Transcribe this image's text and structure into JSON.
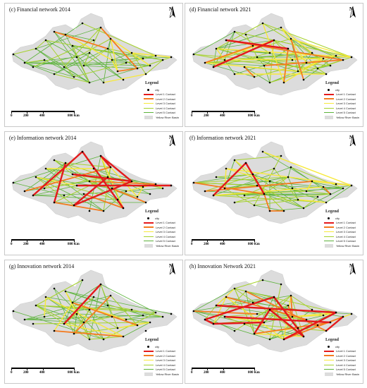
{
  "panels": [
    {
      "title": "(c) Financial network 2014",
      "seed": 11,
      "counts": [
        0,
        3,
        6,
        22,
        40
      ]
    },
    {
      "title": "(d) Financial network 2021",
      "seed": 23,
      "counts": [
        2,
        6,
        14,
        28,
        34
      ]
    },
    {
      "title": "(e) Information network 2014",
      "seed": 37,
      "counts": [
        9,
        5,
        8,
        16,
        26
      ]
    },
    {
      "title": "(f) Information network 2021",
      "seed": 41,
      "counts": [
        2,
        5,
        9,
        22,
        32
      ]
    },
    {
      "title": "(g) Innovation network 2014",
      "seed": 53,
      "counts": [
        1,
        3,
        7,
        20,
        36
      ]
    },
    {
      "title": "(h) Innovation Network 2021",
      "seed": 67,
      "counts": [
        10,
        8,
        12,
        20,
        30
      ]
    }
  ],
  "north": "N",
  "legend": {
    "title": "Legend",
    "city": "city",
    "levels": [
      "Level 1 Contact",
      "Level 2 Contact",
      "Level 3 Contact",
      "Level 4 Contact",
      "Level 5 Contact"
    ],
    "basin": "Yellow River Basin"
  },
  "scale_labels": [
    "0",
    "200",
    "400",
    "800 Km"
  ],
  "colors": {
    "level1": "#e41a1c",
    "level2": "#f47b20",
    "level3": "#f7e93a",
    "level4": "#a6d22d",
    "level5": "#5cb33b",
    "basin": "#dcdcdc",
    "city": "#000000"
  }
}
